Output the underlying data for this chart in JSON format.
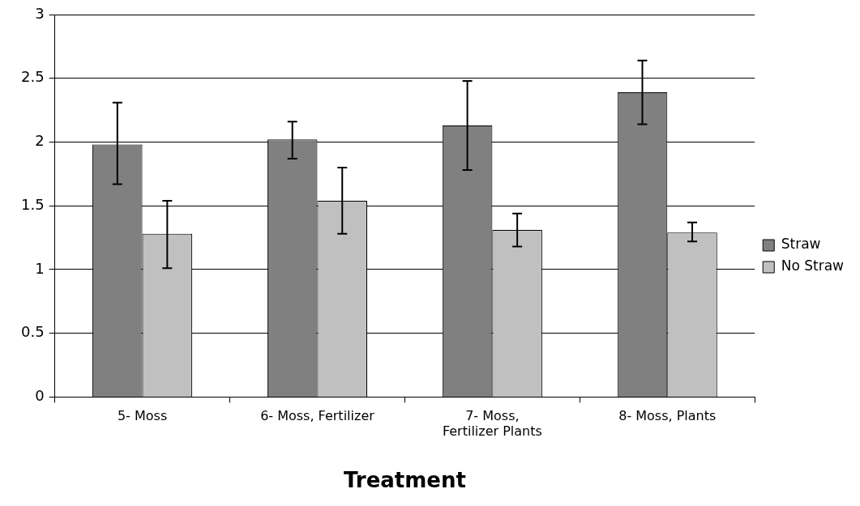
{
  "chart_data": {
    "type": "bar",
    "xlabel": "Treatment",
    "categories": [
      "5- Moss",
      "6- Moss, Fertilizer",
      "7- Moss,\nFertilizer Plants",
      "8- Moss, Plants"
    ],
    "series": [
      {
        "name": "Straw",
        "color": "#808080",
        "values": [
          1.98,
          2.02,
          2.13,
          2.39
        ],
        "errors": [
          [
            1.67,
            2.31
          ],
          [
            1.87,
            2.16
          ],
          [
            1.78,
            2.48
          ],
          [
            2.14,
            2.64
          ]
        ]
      },
      {
        "name": "No Straw",
        "color": "#c0c0c0",
        "values": [
          1.28,
          1.54,
          1.31,
          1.29
        ],
        "errors": [
          [
            1.01,
            1.54
          ],
          [
            1.28,
            1.8
          ],
          [
            1.18,
            1.44
          ],
          [
            1.22,
            1.37
          ]
        ]
      }
    ],
    "ylim": [
      0,
      3
    ],
    "yticks": [
      0,
      0.5,
      1,
      1.5,
      2,
      2.5,
      3
    ],
    "grid": "y",
    "legend": "right"
  }
}
